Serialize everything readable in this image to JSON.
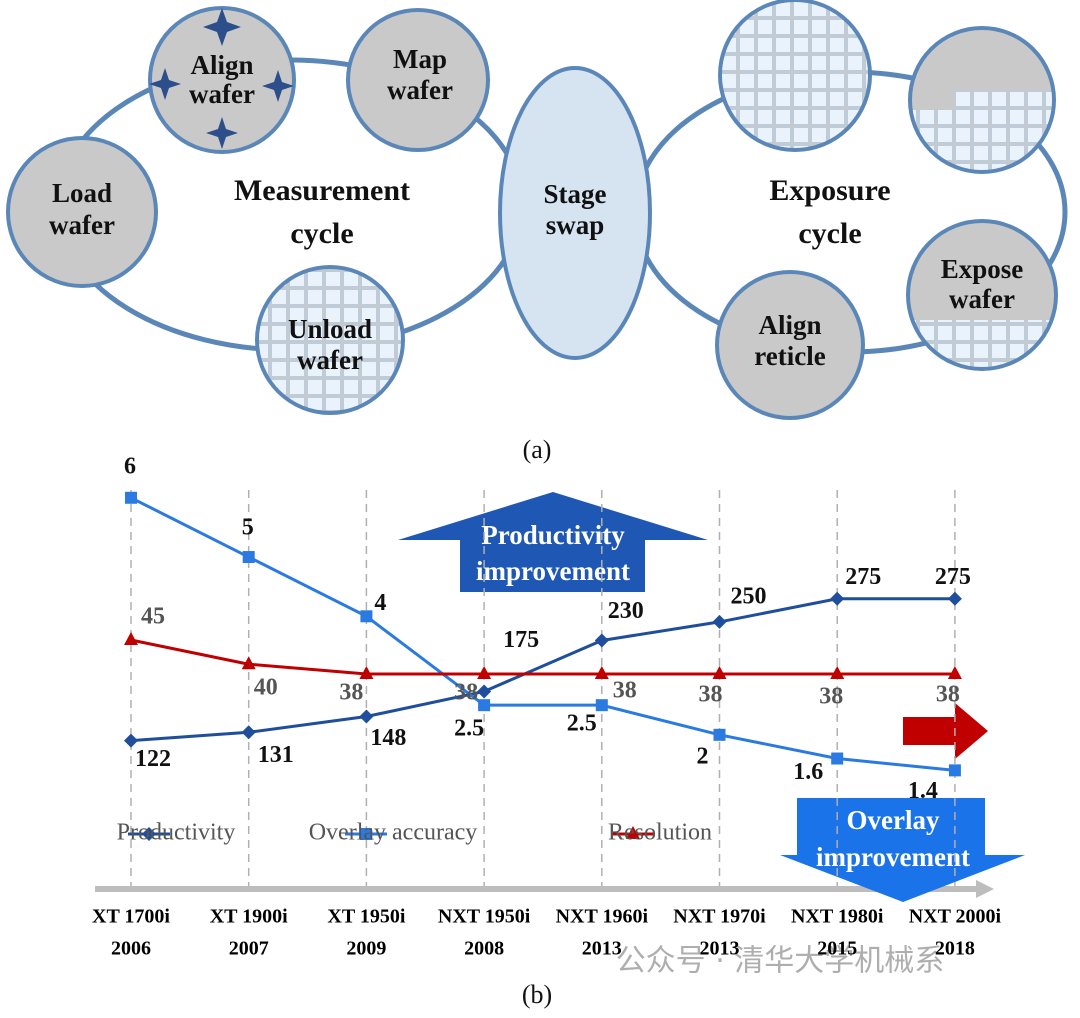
{
  "diagram": {
    "nodes": [
      [
        "Align",
        "wafer"
      ],
      [
        "Map",
        "wafer"
      ],
      [
        "Load",
        "wafer"
      ],
      [
        "Unload",
        "wafer"
      ],
      [
        "Align",
        "reticle"
      ],
      [
        "Expose",
        "wafer"
      ]
    ],
    "cycles": [
      [
        "Measurement",
        "cycle"
      ],
      [
        "Exposure",
        "cycle"
      ]
    ],
    "center": [
      "Stage",
      "swap"
    ],
    "caption": "(a)"
  },
  "chart_data": {
    "type": "line",
    "caption": "(b)",
    "categories": [
      [
        "XT 1700i",
        "2006"
      ],
      [
        "XT 1900i",
        "2007"
      ],
      [
        "XT 1950i",
        "2009"
      ],
      [
        "NXT 1950i",
        "2008"
      ],
      [
        "NXT 1960i",
        "2013"
      ],
      [
        "NXT 1970i",
        "2013"
      ],
      [
        "NXT 1980i",
        "2015"
      ],
      [
        "NXT 2000i",
        "2018"
      ]
    ],
    "series": [
      {
        "name": "Productivity",
        "color": "#1f4e9c",
        "marker": "diamond",
        "ylim": [
          58,
          403
        ],
        "values": [
          122,
          131,
          148,
          175,
          230,
          250,
          275,
          275
        ]
      },
      {
        "name": "Overlay accuracy",
        "color": "#2a7ae2",
        "marker": "square",
        "ylim": [
          0.9,
          6.3
        ],
        "values": [
          6,
          5,
          4,
          2.5,
          2.5,
          2,
          1.6,
          1.4
        ]
      },
      {
        "name": "Resolution",
        "color": "#c00000",
        "marker": "triangle",
        "ylim": [
          12,
          78
        ],
        "values": [
          45,
          40,
          38,
          38,
          38,
          38,
          38,
          38
        ]
      }
    ],
    "annotations": [
      [
        "Productivity",
        "improvement"
      ],
      [
        "Overlay",
        "improvement"
      ]
    ]
  },
  "watermark": "公众号 · 清华大学机械系"
}
